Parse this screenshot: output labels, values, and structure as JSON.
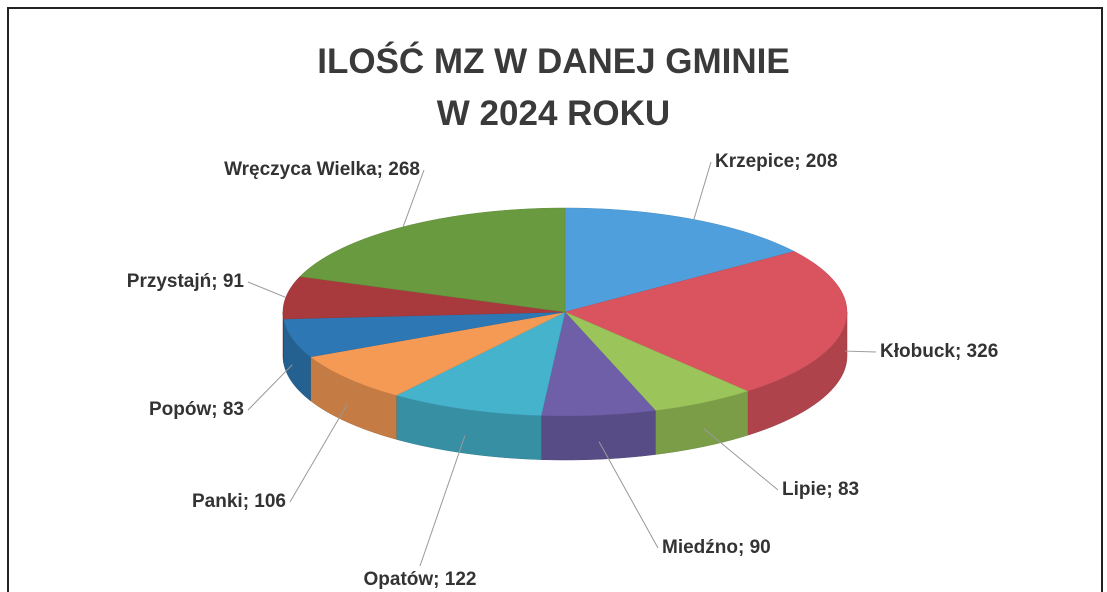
{
  "chart_data": {
    "type": "pie",
    "title": "ILOŚĆ MZ W DANEJ GMINIE\nW 2024 ROKU",
    "values": [
      208,
      326,
      83,
      90,
      122,
      106,
      83,
      91,
      268
    ],
    "value_labels": [
      "Krzepice; 208",
      "Kłobuck; 326",
      "Lipie; 83",
      "Miedźno; 90",
      "Opatów; 122",
      "Panki; 106",
      "Popów; 83",
      "Przystajń; 91",
      "Wręczyca Wielka; 268"
    ],
    "colors": [
      "#4f9fdc",
      "#d9545f",
      "#9bc45a",
      "#6e5fa8",
      "#45b3cc",
      "#f59a55",
      "#2d78b4",
      "#a83a3e",
      "#6a9a3f"
    ]
  }
}
